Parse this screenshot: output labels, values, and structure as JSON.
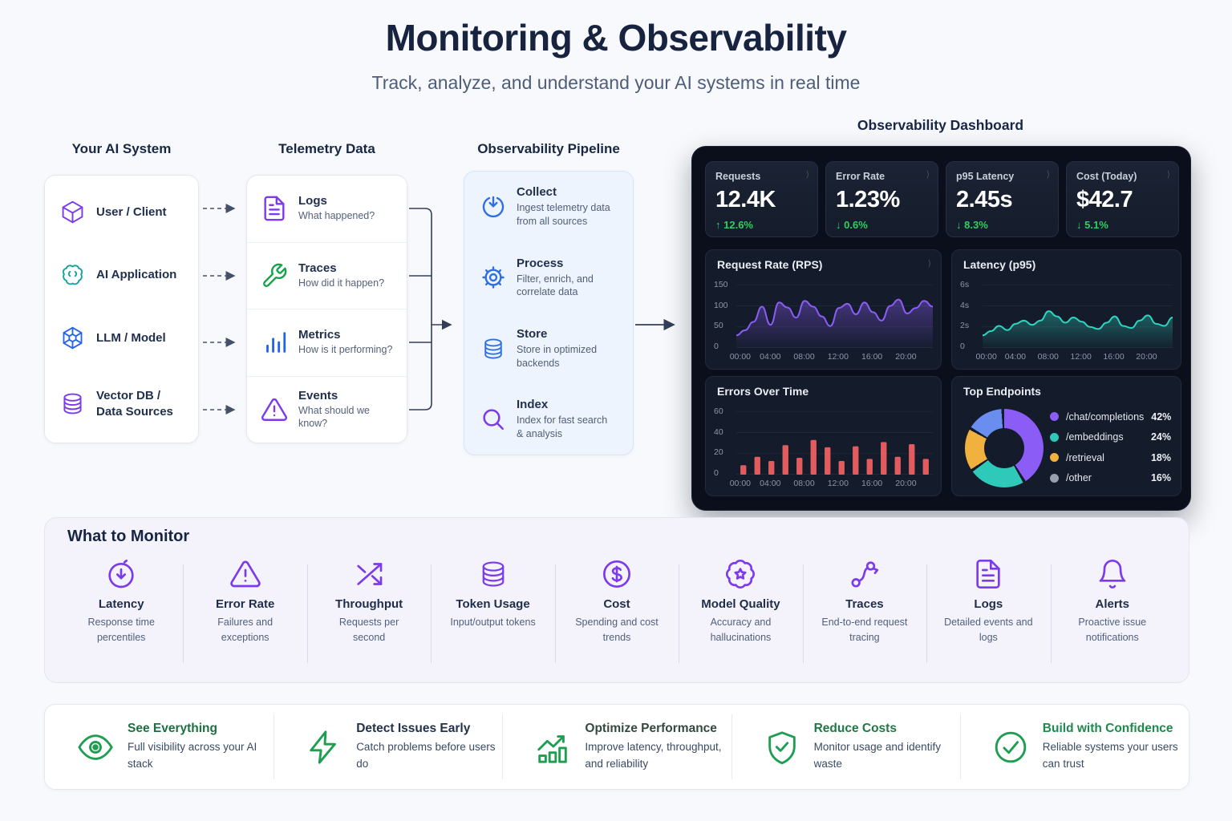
{
  "page": {
    "title": "Monitoring & Observability",
    "subtitle": "Track, analyze, and understand your AI systems in real time"
  },
  "system": {
    "heading": "Your AI System",
    "items": [
      {
        "label": "User / Client",
        "icon": "cube-icon"
      },
      {
        "label": "AI Application",
        "icon": "brain-icon"
      },
      {
        "label": "LLM / Model",
        "icon": "model-node-icon"
      },
      {
        "label": "Vector DB / Data Sources",
        "icon": "database-icon"
      }
    ]
  },
  "telemetry": {
    "heading": "Telemetry Data",
    "items": [
      {
        "title": "Logs",
        "desc": "What happened?",
        "icon": "document-icon"
      },
      {
        "title": "Traces",
        "desc": "How did it happen?",
        "icon": "wrench-icon"
      },
      {
        "title": "Metrics",
        "desc": "How is it performing?",
        "icon": "bar-chart-icon"
      },
      {
        "title": "Events",
        "desc": "What should we know?",
        "icon": "warning-triangle-icon"
      }
    ]
  },
  "pipeline": {
    "heading": "Observability Pipeline",
    "items": [
      {
        "title": "Collect",
        "desc": "Ingest telemetry data from all sources",
        "icon": "download-icon"
      },
      {
        "title": "Process",
        "desc": "Filter, enrich, and correlate data",
        "icon": "gear-icon"
      },
      {
        "title": "Store",
        "desc": "Store in optimized backends",
        "icon": "database-icon"
      },
      {
        "title": "Index",
        "desc": "Index for fast search & analysis",
        "icon": "search-icon"
      }
    ]
  },
  "dashboard": {
    "heading": "Observability Dashboard",
    "chevron": "⟩",
    "delta_color": "#2fce63",
    "kpis": [
      {
        "label": "Requests",
        "value": "12.4K",
        "arrow": "↑",
        "delta": "12.6%"
      },
      {
        "label": "Error Rate",
        "value": "1.23%",
        "arrow": "↓",
        "delta": "0.6%"
      },
      {
        "label": "p95 Latency",
        "value": "2.45s",
        "arrow": "↓",
        "delta": "8.3%"
      },
      {
        "label": "Cost (Today)",
        "value": "$42.7",
        "arrow": "↓",
        "delta": "5.1%"
      }
    ]
  },
  "chart_data": [
    {
      "type": "line",
      "title": "Request Rate (RPS)",
      "color": "#8b5cf6",
      "ylim": [
        0,
        160
      ],
      "y_ticks": [
        "0",
        "50",
        "100",
        "150"
      ],
      "x_ticks": [
        "00:00",
        "04:00",
        "08:00",
        "12:00",
        "16:00",
        "20:00"
      ],
      "values": [
        30,
        42,
        62,
        98,
        55,
        108,
        96,
        72,
        112,
        98,
        75,
        52,
        95,
        105,
        80,
        108,
        85,
        65,
        100,
        115,
        82,
        95,
        112,
        98
      ]
    },
    {
      "type": "line",
      "title": "Latency (p95)",
      "color": "#2dd4bf",
      "ylim": [
        0,
        6.4
      ],
      "y_ticks": [
        "0",
        "2s",
        "4s",
        "6s"
      ],
      "x_ticks": [
        "00:00",
        "04:00",
        "08:00",
        "12:00",
        "16:00",
        "20:00"
      ],
      "values": [
        1.2,
        1.6,
        2.1,
        1.7,
        2.3,
        2.6,
        2.2,
        2.6,
        3.5,
        3.0,
        2.4,
        2.9,
        2.5,
        2.0,
        1.8,
        2.4,
        3.0,
        2.1,
        1.9,
        2.6,
        3.1,
        2.3,
        2.1,
        2.9
      ]
    },
    {
      "type": "bar",
      "title": "Errors Over Time",
      "color": "#e25b5e",
      "ylim": [
        0,
        64
      ],
      "y_ticks": [
        "0",
        "20",
        "40",
        "60"
      ],
      "x_ticks": [
        "00:00",
        "04:00",
        "08:00",
        "12:00",
        "16:00",
        "20:00"
      ],
      "values": [
        9,
        17,
        13,
        28,
        16,
        33,
        26,
        13,
        27,
        15,
        31,
        17,
        29,
        15
      ]
    },
    {
      "type": "pie",
      "title": "Top Endpoints",
      "slices": [
        {
          "label": "/chat/completions",
          "pct": 42,
          "pct_label": "42%",
          "color": "#8b5cf6"
        },
        {
          "label": "/embeddings",
          "pct": 24,
          "pct_label": "24%",
          "color": "#2fc9b9"
        },
        {
          "label": "/retrieval",
          "pct": 18,
          "pct_label": "18%",
          "color": "#f0b13e"
        },
        {
          "label": "/other",
          "pct": 16,
          "pct_label": "16%",
          "color": "#6a8ef0",
          "dot_color": "#98a0ad"
        }
      ]
    }
  ],
  "monitor": {
    "heading": "What to Monitor",
    "items": [
      {
        "title": "Latency",
        "desc": "Response time percentiles",
        "icon": "stopwatch-icon"
      },
      {
        "title": "Error Rate",
        "desc": "Failures and exceptions",
        "icon": "warning-triangle-icon"
      },
      {
        "title": "Throughput",
        "desc": "Requests per second",
        "icon": "shuffle-arrows-icon"
      },
      {
        "title": "Token Usage",
        "desc": "Input/output tokens",
        "icon": "database-icon"
      },
      {
        "title": "Cost",
        "desc": "Spending and cost trends",
        "icon": "dollar-circle-icon"
      },
      {
        "title": "Model Quality",
        "desc": "Accuracy and hallucinations",
        "icon": "badge-star-icon"
      },
      {
        "title": "Traces",
        "desc": "End-to-end request tracing",
        "icon": "route-icon"
      },
      {
        "title": "Logs",
        "desc": "Detailed events and logs",
        "icon": "document-icon"
      },
      {
        "title": "Alerts",
        "desc": "Proactive issue notifications",
        "icon": "bell-icon"
      }
    ]
  },
  "benefits": [
    {
      "title": "See Everything",
      "desc": "Full visibility across your AI stack",
      "icon": "eye-icon",
      "title_color": "#1d6f42"
    },
    {
      "title": "Detect Issues Early",
      "desc": "Catch problems before users do",
      "icon": "lightning-icon",
      "title_color": "#22324a"
    },
    {
      "title": "Optimize Performance",
      "desc": "Improve latency, throughput, and reliability",
      "icon": "chart-up-icon",
      "title_color": "#33493f"
    },
    {
      "title": "Reduce Costs",
      "desc": "Monitor usage and identify waste",
      "icon": "shield-check-icon",
      "title_color": "#1d7a46"
    },
    {
      "title": "Build with Confidence",
      "desc": "Reliable systems your users can trust",
      "icon": "circle-check-icon",
      "title_color": "#1f8a4e"
    }
  ]
}
